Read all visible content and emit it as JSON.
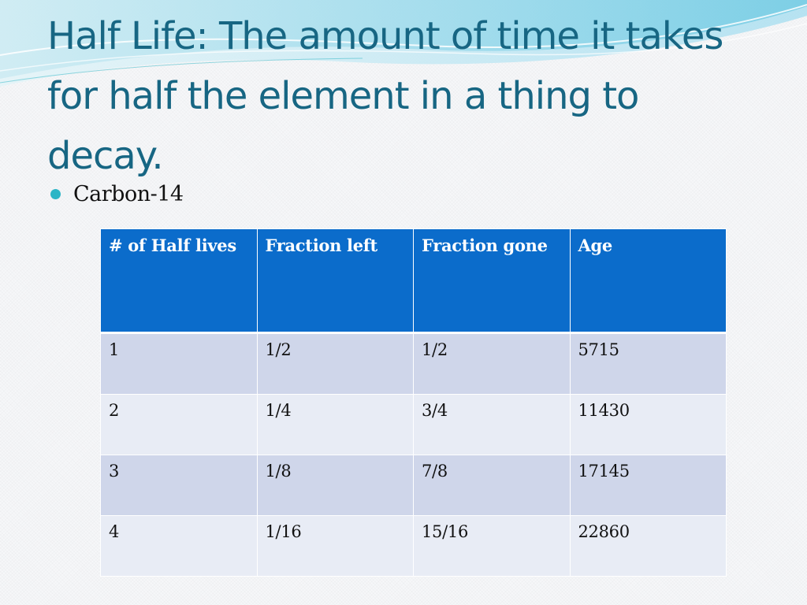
{
  "slide": {
    "title": "Half Life: The amount of time it takes for half the element in a thing to decay.",
    "bullet": "Carbon-14"
  },
  "table": {
    "headers": [
      "# of Half lives",
      "Fraction left",
      "Fraction gone",
      "Age"
    ],
    "rows": [
      [
        "1",
        "1/2",
        "1/2",
        "5715"
      ],
      [
        "2",
        "1/4",
        "3/4",
        "11430"
      ],
      [
        "3",
        "1/8",
        "7/8",
        "17145"
      ],
      [
        "4",
        "1/16",
        "15/16",
        "22860"
      ]
    ]
  },
  "colors": {
    "title": "#176683",
    "header_fill": "#0b6ccb",
    "row_odd": "#cfd6ea",
    "row_even": "#e8ecf5",
    "bullet": "#2bb5c6"
  }
}
